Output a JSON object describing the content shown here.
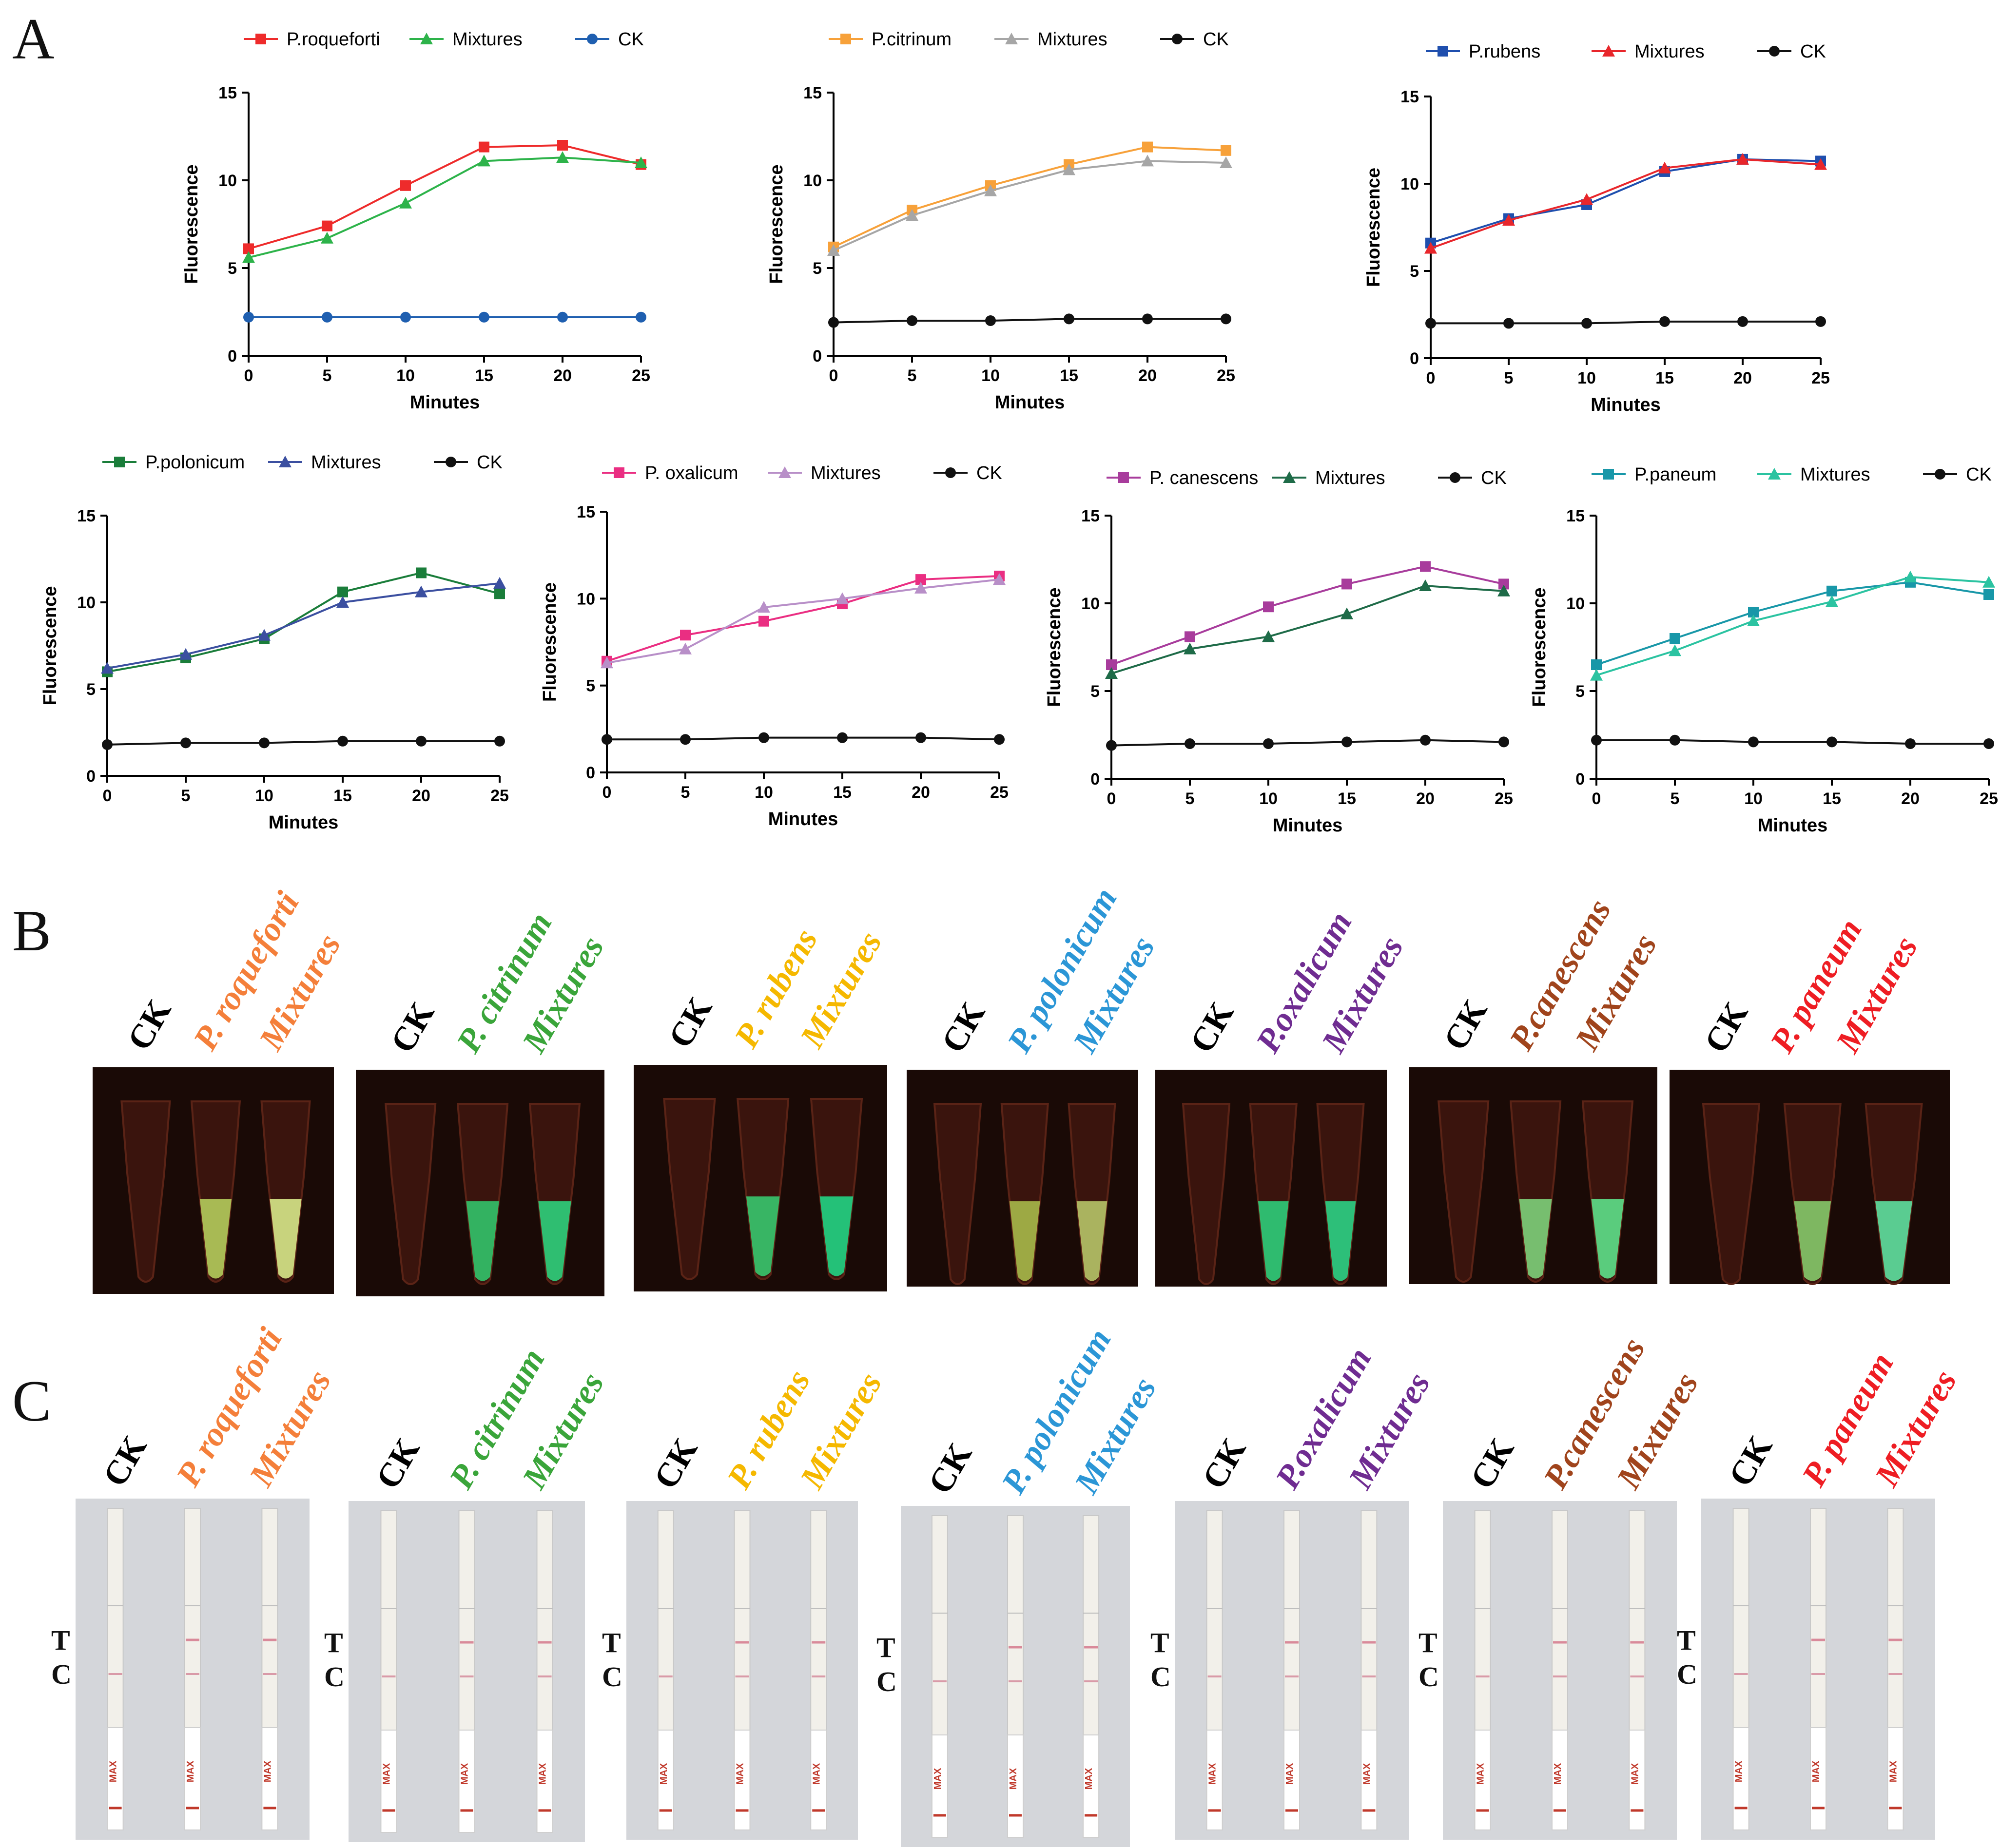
{
  "panels": {
    "a": "A",
    "b": "B",
    "c": "C"
  },
  "axis_common": {
    "xlabel": "Minutes",
    "ylabel": "Fluorescence"
  },
  "strip": {
    "t_label": "T",
    "c_label": "C",
    "max_label": "MAX"
  },
  "chart_data": [
    {
      "type": "line",
      "x": [
        0,
        5,
        10,
        15,
        20,
        25
      ],
      "xlim": [
        0,
        25
      ],
      "ylim": [
        0,
        15
      ],
      "xticks": [
        0,
        5,
        10,
        15,
        20,
        25
      ],
      "yticks": [
        0,
        5,
        10,
        15
      ],
      "xlabel": "Minutes",
      "ylabel": "Fluorescence",
      "series": [
        {
          "name": "P.roqueforti",
          "color": "#ee2b2b",
          "marker": "square",
          "values": [
            6.1,
            7.4,
            9.7,
            11.9,
            12.0,
            10.9
          ]
        },
        {
          "name": "Mixtures",
          "color": "#2db34a",
          "marker": "triangle",
          "values": [
            5.6,
            6.7,
            8.7,
            11.1,
            11.3,
            11.0
          ]
        },
        {
          "name": "CK",
          "color": "#1f5fb0",
          "marker": "circle",
          "values": [
            2.2,
            2.2,
            2.2,
            2.2,
            2.2,
            2.2
          ]
        }
      ]
    },
    {
      "type": "line",
      "x": [
        0,
        5,
        10,
        15,
        20,
        25
      ],
      "xlim": [
        0,
        25
      ],
      "ylim": [
        0,
        15
      ],
      "xticks": [
        0,
        5,
        10,
        15,
        20,
        25
      ],
      "yticks": [
        0,
        5,
        10,
        15
      ],
      "xlabel": "Minutes",
      "ylabel": "Fluorescence",
      "series": [
        {
          "name": "P.citrinum",
          "color": "#f7a13a",
          "marker": "square",
          "values": [
            6.2,
            8.3,
            9.7,
            10.9,
            11.9,
            11.7
          ]
        },
        {
          "name": "Mixtures",
          "color": "#a6a6a6",
          "marker": "triangle",
          "values": [
            6.0,
            8.0,
            9.4,
            10.6,
            11.1,
            11.0
          ]
        },
        {
          "name": "CK",
          "color": "#111111",
          "marker": "circle",
          "values": [
            1.9,
            2.0,
            2.0,
            2.1,
            2.1,
            2.1
          ]
        }
      ]
    },
    {
      "type": "line",
      "x": [
        0,
        5,
        10,
        15,
        20,
        25
      ],
      "xlim": [
        0,
        25
      ],
      "ylim": [
        0,
        15
      ],
      "xticks": [
        0,
        5,
        10,
        15,
        20,
        25
      ],
      "yticks": [
        0,
        5,
        10,
        15
      ],
      "xlabel": "Minutes",
      "ylabel": "Fluorescence",
      "series": [
        {
          "name": "P.rubens",
          "color": "#1f4fae",
          "marker": "square",
          "values": [
            6.6,
            8.0,
            8.8,
            10.7,
            11.4,
            11.3
          ]
        },
        {
          "name": "Mixtures",
          "color": "#e8262b",
          "marker": "triangle",
          "values": [
            6.3,
            7.9,
            9.1,
            10.9,
            11.4,
            11.1
          ]
        },
        {
          "name": "CK",
          "color": "#111111",
          "marker": "circle",
          "values": [
            2.0,
            2.0,
            2.0,
            2.1,
            2.1,
            2.1
          ]
        }
      ]
    },
    {
      "type": "line",
      "x": [
        0,
        5,
        10,
        15,
        20,
        25
      ],
      "xlim": [
        0,
        25
      ],
      "ylim": [
        0,
        15
      ],
      "xticks": [
        0,
        5,
        10,
        15,
        20,
        25
      ],
      "yticks": [
        0,
        5,
        10,
        15
      ],
      "xlabel": "Minutes",
      "ylabel": "Fluorescence",
      "series": [
        {
          "name": "P.polonicum",
          "color": "#1a7d3a",
          "marker": "square",
          "values": [
            6.0,
            6.8,
            7.9,
            10.6,
            11.7,
            10.5
          ]
        },
        {
          "name": "Mixtures",
          "color": "#3b4fa0",
          "marker": "triangle",
          "values": [
            6.2,
            7.0,
            8.1,
            10.0,
            10.6,
            11.1
          ]
        },
        {
          "name": "CK",
          "color": "#111111",
          "marker": "circle",
          "values": [
            1.8,
            1.9,
            1.9,
            2.0,
            2.0,
            2.0
          ]
        }
      ]
    },
    {
      "type": "line",
      "x": [
        0,
        5,
        10,
        15,
        20,
        25
      ],
      "xlim": [
        0,
        25
      ],
      "ylim": [
        0,
        15
      ],
      "xticks": [
        0,
        5,
        10,
        15,
        20,
        25
      ],
      "yticks": [
        0,
        5,
        10,
        15
      ],
      "xlabel": "Minutes",
      "ylabel": "Fluorescence",
      "series": [
        {
          "name": "P. oxalicum",
          "color": "#ea2e82",
          "marker": "square",
          "values": [
            6.4,
            7.9,
            8.7,
            9.7,
            11.1,
            11.3
          ]
        },
        {
          "name": "Mixtures",
          "color": "#b88fc8",
          "marker": "triangle",
          "values": [
            6.3,
            7.1,
            9.5,
            10.0,
            10.6,
            11.1
          ]
        },
        {
          "name": "CK",
          "color": "#111111",
          "marker": "circle",
          "values": [
            1.9,
            1.9,
            2.0,
            2.0,
            2.0,
            1.9
          ]
        }
      ]
    },
    {
      "type": "line",
      "x": [
        0,
        5,
        10,
        15,
        20,
        25
      ],
      "xlim": [
        0,
        25
      ],
      "ylim": [
        0,
        15
      ],
      "xticks": [
        0,
        5,
        10,
        15,
        20,
        25
      ],
      "yticks": [
        0,
        5,
        10,
        15
      ],
      "xlabel": "Minutes",
      "ylabel": "Fluorescence",
      "series": [
        {
          "name": "P. canescens",
          "color": "#a83c9c",
          "marker": "square",
          "values": [
            6.5,
            8.1,
            9.8,
            11.1,
            12.1,
            11.1
          ]
        },
        {
          "name": "Mixtures",
          "color": "#1e6b48",
          "marker": "triangle",
          "values": [
            6.0,
            7.4,
            8.1,
            9.4,
            11.0,
            10.7
          ]
        },
        {
          "name": "CK",
          "color": "#111111",
          "marker": "circle",
          "values": [
            1.9,
            2.0,
            2.0,
            2.1,
            2.2,
            2.1
          ]
        }
      ]
    },
    {
      "type": "line",
      "x": [
        0,
        5,
        10,
        15,
        20,
        25
      ],
      "xlim": [
        0,
        25
      ],
      "ylim": [
        0,
        15
      ],
      "xticks": [
        0,
        5,
        10,
        15,
        20,
        25
      ],
      "yticks": [
        0,
        5,
        10,
        15
      ],
      "xlabel": "Minutes",
      "ylabel": "Fluorescence",
      "series": [
        {
          "name": "P.paneum",
          "color": "#1897a8",
          "marker": "square",
          "values": [
            6.5,
            8.0,
            9.5,
            10.7,
            11.2,
            10.5
          ]
        },
        {
          "name": "Mixtures",
          "color": "#2bc3a1",
          "marker": "triangle",
          "values": [
            5.9,
            7.3,
            9.0,
            10.1,
            11.5,
            11.2
          ]
        },
        {
          "name": "CK",
          "color": "#111111",
          "marker": "circle",
          "values": [
            2.2,
            2.2,
            2.1,
            2.1,
            2.0,
            2.0
          ]
        }
      ]
    }
  ],
  "panel_b_groups": [
    {
      "ck": "CK",
      "species": "P. roqueforti",
      "mix": "Mixtures",
      "color": "#f47f3a"
    },
    {
      "ck": "CK",
      "species": "P. citrinum",
      "mix": "Mixtures",
      "color": "#3aa53a"
    },
    {
      "ck": "CK",
      "species": "P. rubens",
      "mix": "Mixtures",
      "color": "#f5b800"
    },
    {
      "ck": "CK",
      "species": "P. polonicum",
      "mix": "Mixtures",
      "color": "#2b96d6"
    },
    {
      "ck": "CK",
      "species": "P.oxalicum",
      "mix": "Mixtures",
      "color": "#6f2c91"
    },
    {
      "ck": "CK",
      "species": "P.canescens",
      "mix": "Mixtures",
      "color": "#a0441c"
    },
    {
      "ck": "CK",
      "species": "P. paneum",
      "mix": "Mixtures",
      "color": "#ee1d23"
    }
  ],
  "panel_c_groups": [
    {
      "ck": "CK",
      "species": "P. roqueforti",
      "mix": "Mixtures",
      "color": "#f47f3a"
    },
    {
      "ck": "CK",
      "species": "P. citrinum",
      "mix": "Mixtures",
      "color": "#3aa53a"
    },
    {
      "ck": "CK",
      "species": "P. rubens",
      "mix": "Mixtures",
      "color": "#f5b800"
    },
    {
      "ck": "CK",
      "species": "P. polonicum",
      "mix": "Mixtures",
      "color": "#2b96d6"
    },
    {
      "ck": "CK",
      "species": "P.oxalicum",
      "mix": "Mixtures",
      "color": "#6f2c91"
    },
    {
      "ck": "CK",
      "species": "P.canescens",
      "mix": "Mixtures",
      "color": "#a0441c"
    },
    {
      "ck": "CK",
      "species": "P. paneum",
      "mix": "Mixtures",
      "color": "#ee1d23"
    }
  ],
  "colors": {
    "tube_bg": "#1a0a06",
    "strip_bg": "#d4d6da",
    "ck": "#000000"
  }
}
